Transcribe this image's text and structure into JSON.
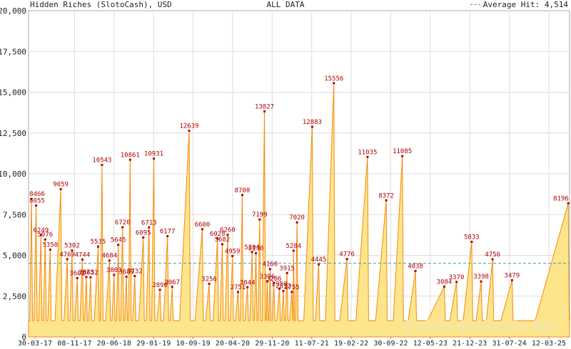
{
  "header": {
    "title": "Hidden Riches (SlotoCash), USD",
    "center": "ALL DATA",
    "legend_label": "Average Hit: 4,514"
  },
  "watermark": "Online-Jackpots.biz",
  "colors": {
    "fill": "#fde58c",
    "line": "#f5890c",
    "label": "#b00000",
    "avg": "#4a9aa8",
    "grid": "#dddddd"
  },
  "chart_data": {
    "type": "area",
    "title": "Hidden Riches (SlotoCash), USD",
    "xlabel": "",
    "ylabel": "",
    "ylim": [
      0,
      20000
    ],
    "yticks": [
      0,
      2500,
      5000,
      7500,
      10000,
      12500,
      15000,
      17500,
      20000
    ],
    "ytick_labels": [
      "0",
      "2,500",
      "5,000",
      "7,500",
      "10,000",
      "12,500",
      "15,000",
      "17,500",
      "20,000"
    ],
    "xtick_labels": [
      "30-03-17",
      "08-11-17",
      "20-06-18",
      "29-01-19",
      "10-09-19",
      "20-04-20",
      "29-11-20",
      "11-07-21",
      "19-02-22",
      "30-09-22",
      "12-05-23",
      "21-12-23",
      "31-07-24",
      "12-03-25"
    ],
    "x_range": [
      "2017-03-30",
      "2025-04-01"
    ],
    "average": 4514,
    "grid": true,
    "legend_position": "top-right",
    "series": [
      {
        "name": "Average Hit: 4,514"
      }
    ],
    "peaks": [
      {
        "date": "2017-04-15",
        "value": 8466
      },
      {
        "date": "2017-05-10",
        "value": 8055
      },
      {
        "date": "2017-06-05",
        "value": 6249
      },
      {
        "date": "2017-06-28",
        "value": 5976
      },
      {
        "date": "2017-07-25",
        "value": 5350
      },
      {
        "date": "2017-09-20",
        "value": 9059
      },
      {
        "date": "2017-10-25",
        "value": 4769
      },
      {
        "date": "2017-11-20",
        "value": 5302
      },
      {
        "date": "2017-12-18",
        "value": 3602
      },
      {
        "date": "2018-01-15",
        "value": 4744
      },
      {
        "date": "2018-02-05",
        "value": 3673
      },
      {
        "date": "2018-02-28",
        "value": 3652
      },
      {
        "date": "2018-04-10",
        "value": 5535
      },
      {
        "date": "2018-05-01",
        "value": 10543
      },
      {
        "date": "2018-06-10",
        "value": 4684
      },
      {
        "date": "2018-07-05",
        "value": 3803
      },
      {
        "date": "2018-07-28",
        "value": 5645
      },
      {
        "date": "2018-08-20",
        "value": 6720
      },
      {
        "date": "2018-09-10",
        "value": 3689
      },
      {
        "date": "2018-09-30",
        "value": 10861
      },
      {
        "date": "2018-10-25",
        "value": 3732
      },
      {
        "date": "2018-12-10",
        "value": 6095
      },
      {
        "date": "2019-01-10",
        "value": 6713
      },
      {
        "date": "2019-02-05",
        "value": 10931
      },
      {
        "date": "2019-03-10",
        "value": 2890
      },
      {
        "date": "2019-04-20",
        "value": 6177
      },
      {
        "date": "2019-05-15",
        "value": 3067
      },
      {
        "date": "2019-08-15",
        "value": 12639
      },
      {
        "date": "2019-10-25",
        "value": 6600
      },
      {
        "date": "2019-12-01",
        "value": 3256
      },
      {
        "date": "2020-01-15",
        "value": 6028
      },
      {
        "date": "2020-02-10",
        "value": 5682
      },
      {
        "date": "2020-03-10",
        "value": 6260
      },
      {
        "date": "2020-04-05",
        "value": 4959
      },
      {
        "date": "2020-05-05",
        "value": 2751
      },
      {
        "date": "2020-05-28",
        "value": 8700
      },
      {
        "date": "2020-06-25",
        "value": 3044
      },
      {
        "date": "2020-07-20",
        "value": 5204
      },
      {
        "date": "2020-08-10",
        "value": 5130
      },
      {
        "date": "2020-08-30",
        "value": 7199
      },
      {
        "date": "2020-09-25",
        "value": 13827
      },
      {
        "date": "2020-10-10",
        "value": 3396
      },
      {
        "date": "2020-10-25",
        "value": 4160
      },
      {
        "date": "2020-11-15",
        "value": 3286
      },
      {
        "date": "2020-12-15",
        "value": 2950
      },
      {
        "date": "2021-01-05",
        "value": 2812
      },
      {
        "date": "2021-01-25",
        "value": 3915
      },
      {
        "date": "2021-02-20",
        "value": 2755
      },
      {
        "date": "2021-03-01",
        "value": 5284
      },
      {
        "date": "2021-03-20",
        "value": 7020
      },
      {
        "date": "2021-06-10",
        "value": 12883
      },
      {
        "date": "2021-07-15",
        "value": 4445
      },
      {
        "date": "2021-10-05",
        "value": 15556
      },
      {
        "date": "2021-12-15",
        "value": 4776
      },
      {
        "date": "2022-04-05",
        "value": 11035
      },
      {
        "date": "2022-07-15",
        "value": 8372
      },
      {
        "date": "2022-10-10",
        "value": 11085
      },
      {
        "date": "2022-12-20",
        "value": 4038
      },
      {
        "date": "2023-05-25",
        "value": 3084
      },
      {
        "date": "2023-07-30",
        "value": 3370
      },
      {
        "date": "2023-10-20",
        "value": 5833
      },
      {
        "date": "2023-12-10",
        "value": 3398
      },
      {
        "date": "2024-02-10",
        "value": 4756
      },
      {
        "date": "2024-05-25",
        "value": 3479
      },
      {
        "date": "2025-03-25",
        "value": 8196
      }
    ]
  }
}
